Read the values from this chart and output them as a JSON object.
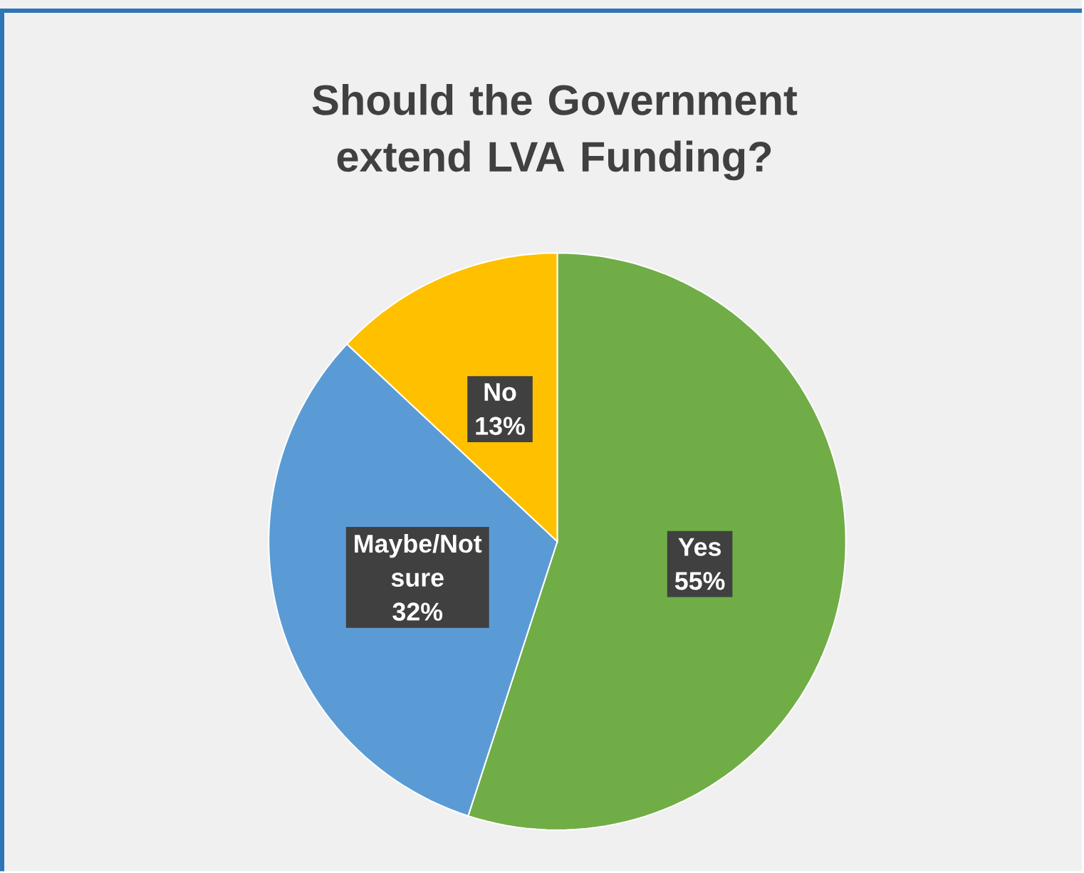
{
  "chart_data": {
    "type": "pie",
    "title": "Should the Government extend LVA Funding?",
    "categories": [
      "Yes",
      "Maybe/Not sure",
      "No"
    ],
    "values": [
      55,
      32,
      13
    ],
    "colors": [
      "#70ad47",
      "#5b9bd5",
      "#ffc000"
    ],
    "value_labels": [
      "55%",
      "32%",
      "13%"
    ]
  }
}
